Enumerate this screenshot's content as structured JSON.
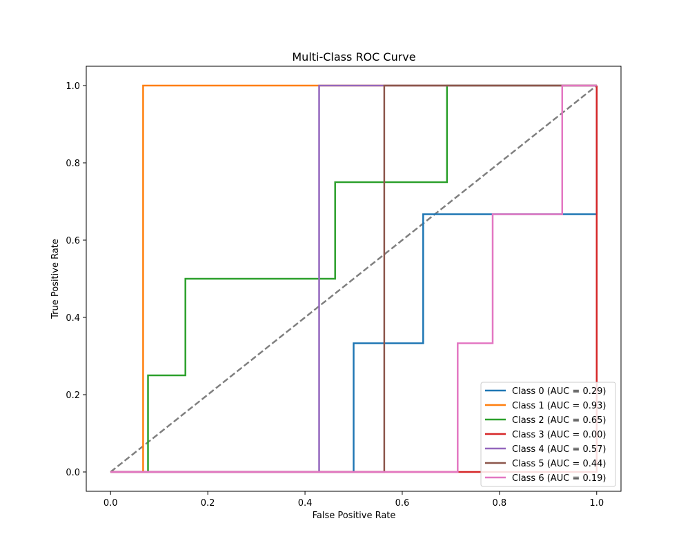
{
  "chart_data": {
    "type": "line",
    "title": "Multi-Class ROC Curve",
    "xlabel": "False Positive Rate",
    "ylabel": "True Positive Rate",
    "xlim": [
      -0.05,
      1.05
    ],
    "ylim": [
      -0.05,
      1.05
    ],
    "xticks": [
      "0.0",
      "0.2",
      "0.4",
      "0.6",
      "0.8",
      "1.0"
    ],
    "yticks": [
      "0.0",
      "0.2",
      "0.4",
      "0.6",
      "0.8",
      "1.0"
    ],
    "grid": false,
    "legend_position": "lower right",
    "diagonal": {
      "x": [
        0,
        1
      ],
      "y": [
        0,
        1
      ],
      "color": "#7f7f7f",
      "style": "dashed"
    },
    "series": [
      {
        "name": "Class 0 (AUC = 0.29)",
        "color": "#1f77b4",
        "x": [
          0,
          0.5,
          0.5,
          0.643,
          0.643,
          1.0,
          1.0
        ],
        "y": [
          0,
          0,
          0.333,
          0.333,
          0.667,
          0.667,
          1.0
        ]
      },
      {
        "name": "Class 1 (AUC = 0.93)",
        "color": "#ff7f0e",
        "x": [
          0,
          0.067,
          0.067,
          1.0
        ],
        "y": [
          0,
          0,
          1.0,
          1.0
        ]
      },
      {
        "name": "Class 2 (AUC = 0.65)",
        "color": "#2ca02c",
        "x": [
          0,
          0.077,
          0.077,
          0.154,
          0.154,
          0.462,
          0.462,
          0.692,
          0.692,
          1.0
        ],
        "y": [
          0,
          0,
          0.25,
          0.25,
          0.5,
          0.5,
          0.75,
          0.75,
          1.0,
          1.0
        ]
      },
      {
        "name": "Class 3 (AUC = 0.00)",
        "color": "#d62728",
        "x": [
          0,
          1.0,
          1.0
        ],
        "y": [
          0,
          0,
          1.0
        ]
      },
      {
        "name": "Class 4 (AUC = 0.57)",
        "color": "#9467bd",
        "x": [
          0,
          0.429,
          0.429,
          1.0
        ],
        "y": [
          0,
          0,
          1.0,
          1.0
        ]
      },
      {
        "name": "Class 5 (AUC = 0.44)",
        "color": "#8c564b",
        "x": [
          0,
          0.563,
          0.563,
          1.0
        ],
        "y": [
          0,
          0,
          1.0,
          1.0
        ]
      },
      {
        "name": "Class 6 (AUC = 0.19)",
        "color": "#e377c2",
        "x": [
          0,
          0.714,
          0.714,
          0.786,
          0.786,
          0.929,
          0.929,
          1.0
        ],
        "y": [
          0,
          0,
          0.333,
          0.333,
          0.667,
          0.667,
          1.0,
          1.0
        ]
      }
    ]
  }
}
